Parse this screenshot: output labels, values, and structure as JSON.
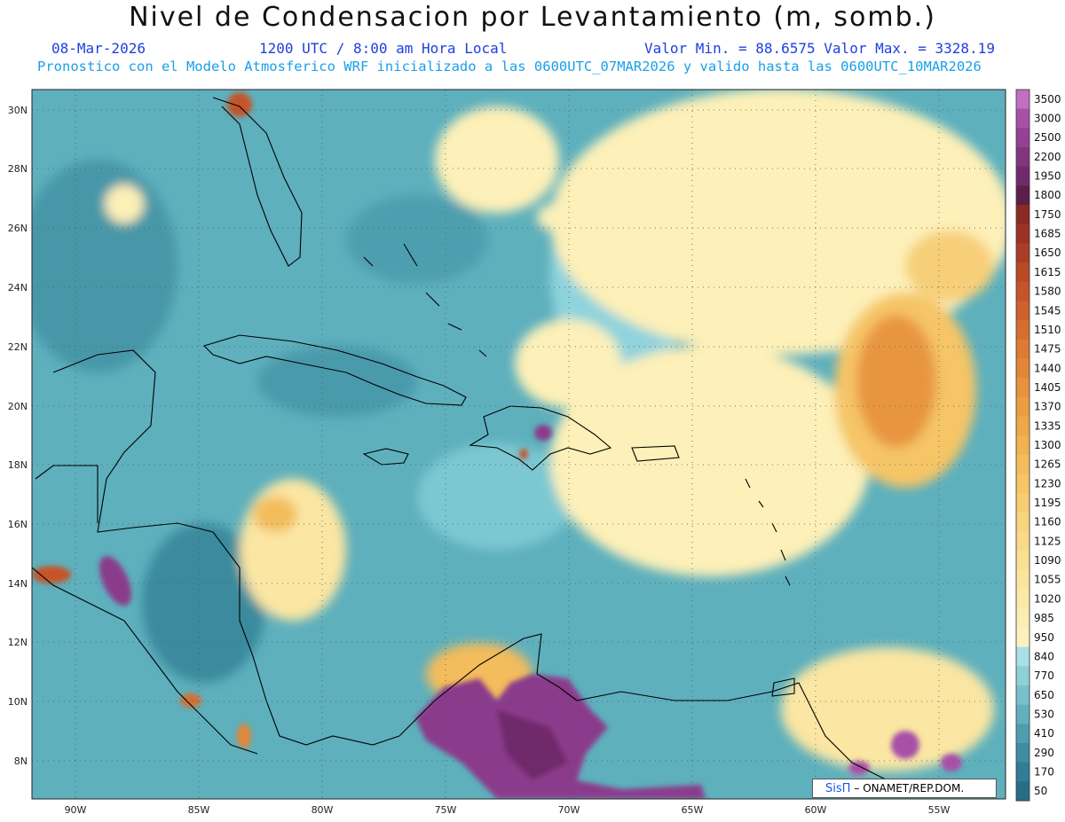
{
  "header": {
    "title": "Nivel de Condensacion por Levantamiento (m, somb.)",
    "date": "08-Mar-2026",
    "time": "1200 UTC / 8:00 am Hora Local",
    "min_max": "Valor Min. = 88.6575  Valor Max. = 3328.19",
    "subtitle": "Pronostico con el Modelo Atmosferico WRF inicializado a las 0600UTC_07MAR2026 y valido hasta las  0600UTC_10MAR2026"
  },
  "map": {
    "lon_labels": [
      "90W",
      "85W",
      "80W",
      "75W",
      "70W",
      "65W",
      "60W",
      "55W"
    ],
    "lat_labels": [
      "30N",
      "28N",
      "26N",
      "24N",
      "22N",
      "20N",
      "18N",
      "16N",
      "14N",
      "12N",
      "10N",
      "8N"
    ]
  },
  "colorbar": {
    "labels": [
      "3500",
      "3000",
      "2500",
      "2200",
      "1950",
      "1800",
      "1750",
      "1685",
      "1650",
      "1615",
      "1580",
      "1545",
      "1510",
      "1475",
      "1440",
      "1405",
      "1370",
      "1335",
      "1300",
      "1265",
      "1230",
      "1195",
      "1160",
      "1125",
      "1090",
      "1055",
      "1020",
      "985",
      "950",
      "840",
      "770",
      "650",
      "530",
      "410",
      "290",
      "170",
      "50"
    ],
    "colors": [
      "#c070c0",
      "#a850a8",
      "#944094",
      "#82357f",
      "#6f2a6c",
      "#5a1f4a",
      "#8a2a22",
      "#9b3325",
      "#ab3d26",
      "#b84a28",
      "#c4552b",
      "#cd622e",
      "#d66e30",
      "#dd7a33",
      "#e28637",
      "#e7923c",
      "#eb9d42",
      "#eea849",
      "#f1b252",
      "#f3bc5c",
      "#f5c566",
      "#f7cd72",
      "#f8d47e",
      "#f9da89",
      "#fae093",
      "#fbe59e",
      "#fce9a8",
      "#fcedb2",
      "#fdf1bd",
      "#a8e0e6",
      "#8fd0d8",
      "#78c0cb",
      "#62afbe",
      "#4f9eb0",
      "#3f8da3",
      "#317c96",
      "#276d87"
    ]
  },
  "credit": {
    "brand": "SisΠ",
    "text": "– ONAMET/REP.DOM."
  }
}
